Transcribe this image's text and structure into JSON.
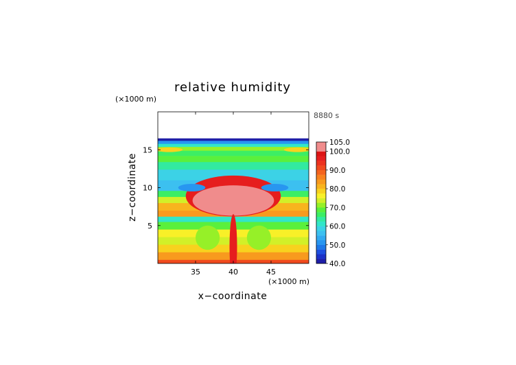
{
  "chart_data": {
    "type": "heatmap",
    "title": "relative humidity",
    "xlabel": "x−coordinate",
    "ylabel": "z−coordinate",
    "x_unit": "(×1000 m)",
    "y_unit": "(×1000 m)",
    "time_label": "8880 s",
    "xlim": [
      30,
      50
    ],
    "ylim": [
      0,
      20
    ],
    "x_ticks": [
      35,
      40,
      45
    ],
    "y_ticks": [
      5,
      10,
      15
    ],
    "grid": false,
    "colorbar": {
      "min": 40.0,
      "max": 105.0,
      "ticks": [
        "40.0",
        "50.0",
        "60.0",
        "70.0",
        "80.0",
        "90.0",
        "100.0",
        "105.0"
      ],
      "levels": [
        {
          "from": 40,
          "to": 42.5,
          "color": "#1e1ea8"
        },
        {
          "from": 42.5,
          "to": 45,
          "color": "#1c32c8"
        },
        {
          "from": 45,
          "to": 47.5,
          "color": "#1e50e0"
        },
        {
          "from": 47.5,
          "to": 50,
          "color": "#1e78e8"
        },
        {
          "from": 50,
          "to": 52.5,
          "color": "#2896f0"
        },
        {
          "from": 52.5,
          "to": 55,
          "color": "#32aaf0"
        },
        {
          "from": 55,
          "to": 57.5,
          "color": "#3cc0f0"
        },
        {
          "from": 57.5,
          "to": 60,
          "color": "#3cd2e6"
        },
        {
          "from": 60,
          "to": 62.5,
          "color": "#32e6c8"
        },
        {
          "from": 62.5,
          "to": 65,
          "color": "#32eaa0"
        },
        {
          "from": 65,
          "to": 67.5,
          "color": "#3cee64"
        },
        {
          "from": 67.5,
          "to": 70,
          "color": "#5af03c"
        },
        {
          "from": 70,
          "to": 72.5,
          "color": "#96f028"
        },
        {
          "from": 72.5,
          "to": 75,
          "color": "#d2f028"
        },
        {
          "from": 75,
          "to": 77.5,
          "color": "#f8f028"
        },
        {
          "from": 77.5,
          "to": 80,
          "color": "#f8d21e"
        },
        {
          "from": 80,
          "to": 82.5,
          "color": "#f8b41e"
        },
        {
          "from": 82.5,
          "to": 85,
          "color": "#f89a1e"
        },
        {
          "from": 85,
          "to": 87.5,
          "color": "#f8821e"
        },
        {
          "from": 87.5,
          "to": 90,
          "color": "#f4641e"
        },
        {
          "from": 90,
          "to": 92.5,
          "color": "#f04a1e"
        },
        {
          "from": 92.5,
          "to": 95,
          "color": "#ec321e"
        },
        {
          "from": 95,
          "to": 97.5,
          "color": "#e61e1e"
        },
        {
          "from": 97.5,
          "to": 100,
          "color": "#dc1414"
        },
        {
          "from": 100,
          "to": 105,
          "color": "#f08c8c"
        }
      ]
    },
    "bands": [
      {
        "z": [
          0.0,
          0.5
        ],
        "value": 92
      },
      {
        "z": [
          0.5,
          1.5
        ],
        "value": 84
      },
      {
        "z": [
          1.5,
          2.5
        ],
        "value": 78
      },
      {
        "z": [
          2.5,
          3.5
        ],
        "value": 74
      },
      {
        "z": [
          3.5,
          4.5
        ],
        "value": 76
      },
      {
        "z": [
          4.5,
          5.5
        ],
        "value": 68
      },
      {
        "z": [
          5.5,
          6.2
        ],
        "value": 61
      },
      {
        "z": [
          6.2,
          7.0
        ],
        "value": 84
      },
      {
        "z": [
          7.0,
          8.0
        ],
        "value": 80
      },
      {
        "z": [
          8.0,
          8.8
        ],
        "value": 74
      },
      {
        "z": [
          8.8,
          9.6
        ],
        "value": 66
      },
      {
        "z": [
          9.6,
          11.0
        ],
        "value": 56
      },
      {
        "z": [
          11.0,
          12.4
        ],
        "value": 58
      },
      {
        "z": [
          12.4,
          13.4
        ],
        "value": 63
      },
      {
        "z": [
          13.4,
          14.2
        ],
        "value": 69
      },
      {
        "z": [
          14.2,
          14.9
        ],
        "value": 66
      },
      {
        "z": [
          14.9,
          15.4
        ],
        "value": 72
      },
      {
        "z": [
          15.4,
          15.8
        ],
        "value": 60
      },
      {
        "z": [
          15.8,
          16.2
        ],
        "value": 50
      },
      {
        "z": [
          16.2,
          16.5
        ],
        "value": 42
      }
    ],
    "features": [
      {
        "shape": "ellipse",
        "cx": 40,
        "cz": 8.9,
        "rx": 6.3,
        "rz": 2.7,
        "value": 96
      },
      {
        "shape": "ellipse",
        "cx": 40,
        "cz": 8.3,
        "rx": 5.4,
        "rz": 2.0,
        "value": 102
      },
      {
        "shape": "ellipse",
        "cx": 36.6,
        "cz": 3.4,
        "rx": 1.6,
        "rz": 1.6,
        "value": 70
      },
      {
        "shape": "ellipse",
        "cx": 43.4,
        "cz": 3.4,
        "rx": 1.6,
        "rz": 1.6,
        "value": 70
      },
      {
        "shape": "ellipse",
        "cx": 40,
        "cz": 2.2,
        "rx": 0.5,
        "rz": 4.3,
        "value": 96
      },
      {
        "shape": "ellipse",
        "cx": 34.5,
        "cz": 10.0,
        "rx": 1.8,
        "rz": 0.5,
        "value": 52
      },
      {
        "shape": "ellipse",
        "cx": 45.5,
        "cz": 10.0,
        "rx": 1.8,
        "rz": 0.5,
        "value": 52
      },
      {
        "shape": "ellipse",
        "cx": 31.5,
        "cz": 15.0,
        "rx": 1.8,
        "rz": 0.3,
        "value": 78
      },
      {
        "shape": "ellipse",
        "cx": 48.5,
        "cz": 15.0,
        "rx": 1.8,
        "rz": 0.3,
        "value": 78
      }
    ]
  }
}
